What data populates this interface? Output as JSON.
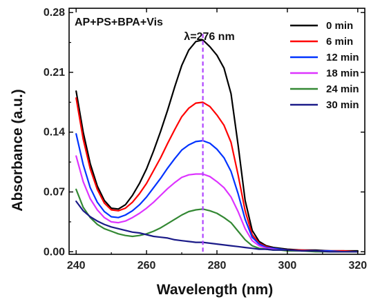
{
  "chart_data": {
    "type": "line",
    "title": "",
    "annotation_top_left": "AP+PS+BPA+Vis",
    "peak_label": "λ=276 nm",
    "peak_x": 276,
    "xlabel": "Wavelength (nm)",
    "ylabel": "Absorbance (a.u.)",
    "xlim": [
      238,
      322
    ],
    "ylim": [
      -0.003,
      0.285
    ],
    "xticks": [
      240,
      260,
      280,
      300,
      320
    ],
    "yticks": [
      0.0,
      0.07,
      0.14,
      0.21,
      0.28
    ],
    "ytick_labels": [
      "0.00",
      "0.07",
      "0.14",
      "0.21",
      "0.28"
    ],
    "grid": false,
    "legend_position": "top-right",
    "colors": {
      "peak_line": "#b044ff"
    },
    "series": [
      {
        "name": "0 min",
        "color": "#000000",
        "x": [
          240,
          242,
          244,
          246,
          248,
          250,
          252,
          254,
          256,
          258,
          260,
          262,
          264,
          266,
          268,
          270,
          272,
          274,
          276,
          278,
          280,
          282,
          284,
          286,
          288,
          290,
          292,
          294,
          296,
          298,
          300,
          304,
          308,
          312,
          316,
          320
        ],
        "values": [
          0.188,
          0.14,
          0.103,
          0.077,
          0.06,
          0.051,
          0.05,
          0.055,
          0.066,
          0.08,
          0.097,
          0.118,
          0.141,
          0.166,
          0.193,
          0.218,
          0.236,
          0.246,
          0.248,
          0.24,
          0.23,
          0.215,
          0.185,
          0.125,
          0.06,
          0.025,
          0.012,
          0.007,
          0.005,
          0.004,
          0.003,
          0.002,
          0.002,
          0.001,
          0.001,
          0.001
        ]
      },
      {
        "name": "6 min",
        "color": "#ff0000",
        "x": [
          240,
          242,
          244,
          246,
          248,
          250,
          252,
          254,
          256,
          258,
          260,
          262,
          264,
          266,
          268,
          270,
          272,
          274,
          276,
          278,
          280,
          282,
          284,
          286,
          288,
          290,
          292,
          294,
          296,
          298,
          300,
          304,
          308,
          312,
          316,
          320
        ],
        "values": [
          0.18,
          0.132,
          0.097,
          0.073,
          0.057,
          0.049,
          0.048,
          0.051,
          0.058,
          0.068,
          0.08,
          0.095,
          0.11,
          0.127,
          0.143,
          0.158,
          0.168,
          0.174,
          0.175,
          0.17,
          0.16,
          0.148,
          0.128,
          0.09,
          0.048,
          0.02,
          0.01,
          0.006,
          0.004,
          0.003,
          0.002,
          0.002,
          0.001,
          0.001,
          0.001,
          0.0
        ]
      },
      {
        "name": "12 min",
        "color": "#0033ff",
        "x": [
          240,
          242,
          244,
          246,
          248,
          250,
          252,
          254,
          256,
          258,
          260,
          262,
          264,
          266,
          268,
          270,
          272,
          274,
          276,
          278,
          280,
          282,
          284,
          286,
          288,
          290,
          292,
          294,
          296,
          298,
          300,
          304,
          308,
          312,
          316,
          320
        ],
        "values": [
          0.138,
          0.102,
          0.075,
          0.058,
          0.047,
          0.041,
          0.04,
          0.043,
          0.048,
          0.055,
          0.064,
          0.075,
          0.086,
          0.098,
          0.109,
          0.119,
          0.125,
          0.129,
          0.13,
          0.127,
          0.12,
          0.11,
          0.094,
          0.068,
          0.038,
          0.017,
          0.009,
          0.005,
          0.004,
          0.003,
          0.002,
          0.001,
          0.001,
          0.001,
          0.0,
          0.0
        ]
      },
      {
        "name": "18 min",
        "color": "#dd33ff",
        "x": [
          240,
          242,
          244,
          246,
          248,
          250,
          252,
          254,
          256,
          258,
          260,
          262,
          264,
          266,
          268,
          270,
          272,
          274,
          276,
          278,
          280,
          282,
          284,
          286,
          288,
          290,
          292,
          294,
          296,
          298,
          300,
          304,
          308,
          312,
          316,
          320
        ],
        "values": [
          0.112,
          0.082,
          0.062,
          0.049,
          0.04,
          0.035,
          0.034,
          0.036,
          0.04,
          0.045,
          0.051,
          0.058,
          0.066,
          0.074,
          0.081,
          0.087,
          0.09,
          0.091,
          0.091,
          0.088,
          0.082,
          0.075,
          0.064,
          0.047,
          0.027,
          0.013,
          0.007,
          0.004,
          0.003,
          0.002,
          0.002,
          0.001,
          0.001,
          0.0,
          0.0,
          0.0
        ]
      },
      {
        "name": "24 min",
        "color": "#338833",
        "x": [
          240,
          242,
          244,
          246,
          248,
          250,
          252,
          254,
          256,
          258,
          260,
          262,
          264,
          266,
          268,
          270,
          272,
          274,
          276,
          278,
          280,
          282,
          284,
          286,
          288,
          290,
          292,
          294,
          296,
          298,
          300,
          304,
          308,
          312,
          316,
          320
        ],
        "values": [
          0.073,
          0.052,
          0.04,
          0.032,
          0.027,
          0.024,
          0.021,
          0.019,
          0.018,
          0.019,
          0.021,
          0.024,
          0.028,
          0.033,
          0.038,
          0.043,
          0.047,
          0.049,
          0.05,
          0.048,
          0.045,
          0.04,
          0.034,
          0.024,
          0.014,
          0.007,
          0.004,
          0.003,
          0.002,
          0.002,
          0.001,
          0.001,
          0.0,
          0.0,
          0.0,
          0.0
        ]
      },
      {
        "name": "30 min",
        "color": "#1a1a88",
        "x": [
          240,
          242,
          244,
          246,
          248,
          250,
          252,
          254,
          256,
          258,
          260,
          262,
          264,
          266,
          268,
          270,
          272,
          274,
          276,
          278,
          280,
          282,
          284,
          286,
          288,
          290,
          292,
          294,
          296,
          298,
          300,
          304,
          308,
          312,
          316,
          320
        ],
        "values": [
          0.059,
          0.048,
          0.041,
          0.036,
          0.032,
          0.029,
          0.027,
          0.025,
          0.023,
          0.022,
          0.02,
          0.018,
          0.017,
          0.016,
          0.014,
          0.013,
          0.012,
          0.011,
          0.011,
          0.01,
          0.009,
          0.008,
          0.007,
          0.006,
          0.005,
          0.004,
          0.003,
          0.003,
          0.002,
          0.002,
          0.002,
          0.001,
          0.001,
          0.0,
          0.0,
          0.0
        ]
      }
    ]
  }
}
